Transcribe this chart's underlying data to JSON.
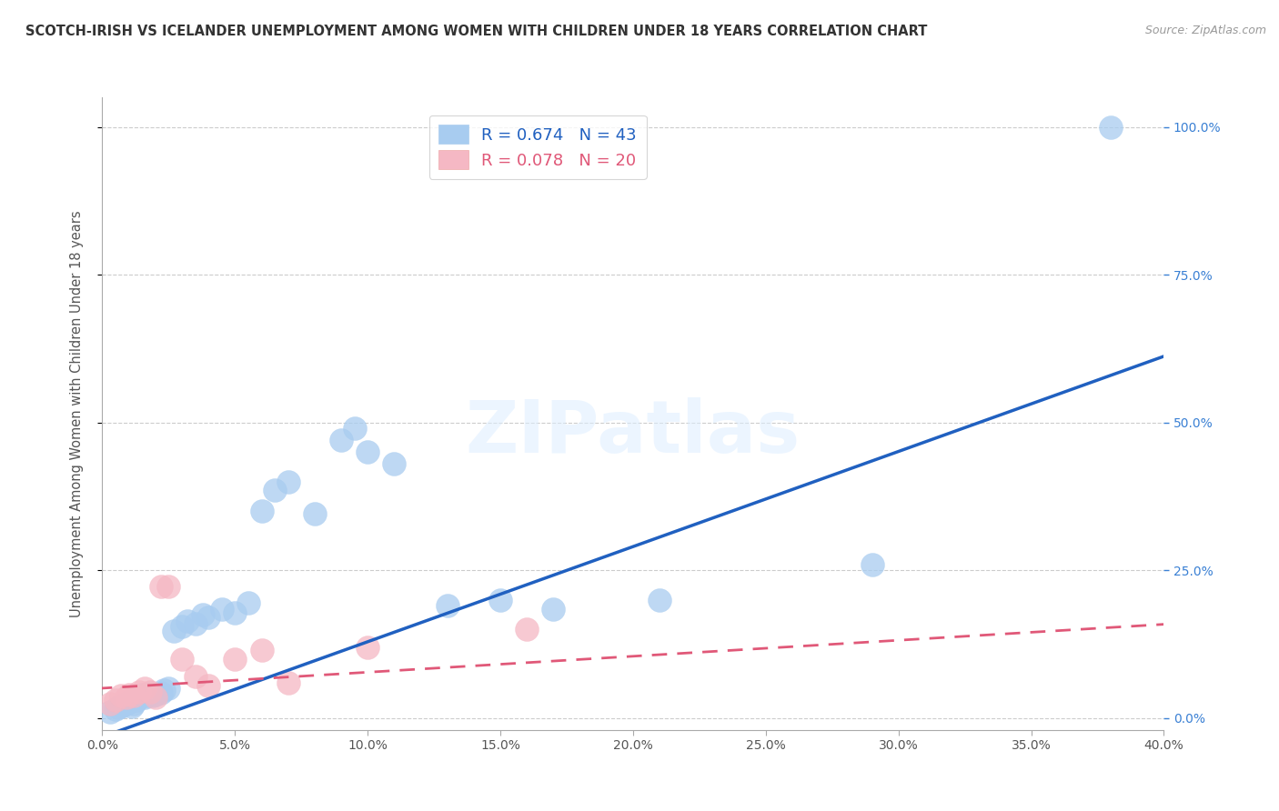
{
  "title": "SCOTCH-IRISH VS ICELANDER UNEMPLOYMENT AMONG WOMEN WITH CHILDREN UNDER 18 YEARS CORRELATION CHART",
  "source": "Source: ZipAtlas.com",
  "ylabel": "Unemployment Among Women with Children Under 18 years",
  "xlim": [
    0.0,
    0.4
  ],
  "ylim": [
    -0.02,
    1.05
  ],
  "scotch_irish_R": 0.674,
  "scotch_irish_N": 43,
  "icelander_R": 0.078,
  "icelander_N": 20,
  "scotch_irish_color": "#a8ccf0",
  "icelander_color": "#f5b8c4",
  "scotch_irish_line_color": "#2060c0",
  "icelander_line_color": "#e05878",
  "background_color": "#ffffff",
  "watermark": "ZIPatlas",
  "scotch_irish_x": [
    0.003,
    0.005,
    0.006,
    0.007,
    0.008,
    0.009,
    0.01,
    0.011,
    0.012,
    0.013,
    0.014,
    0.015,
    0.016,
    0.017,
    0.018,
    0.019,
    0.02,
    0.022,
    0.023,
    0.025,
    0.027,
    0.03,
    0.032,
    0.035,
    0.038,
    0.04,
    0.045,
    0.05,
    0.055,
    0.06,
    0.065,
    0.07,
    0.08,
    0.09,
    0.095,
    0.1,
    0.11,
    0.13,
    0.15,
    0.17,
    0.21,
    0.29,
    0.38
  ],
  "scotch_irish_y": [
    0.01,
    0.015,
    0.018,
    0.02,
    0.022,
    0.025,
    0.028,
    0.02,
    0.025,
    0.03,
    0.035,
    0.04,
    0.035,
    0.038,
    0.042,
    0.038,
    0.04,
    0.042,
    0.048,
    0.05,
    0.148,
    0.155,
    0.165,
    0.16,
    0.175,
    0.17,
    0.185,
    0.178,
    0.195,
    0.35,
    0.385,
    0.4,
    0.345,
    0.47,
    0.49,
    0.45,
    0.43,
    0.19,
    0.2,
    0.185,
    0.2,
    0.26,
    1.0
  ],
  "icelander_x": [
    0.003,
    0.005,
    0.007,
    0.009,
    0.01,
    0.012,
    0.014,
    0.016,
    0.018,
    0.02,
    0.022,
    0.025,
    0.03,
    0.035,
    0.04,
    0.05,
    0.06,
    0.07,
    0.1,
    0.16
  ],
  "icelander_y": [
    0.025,
    0.03,
    0.038,
    0.035,
    0.04,
    0.038,
    0.045,
    0.05,
    0.045,
    0.035,
    0.222,
    0.222,
    0.1,
    0.07,
    0.055,
    0.1,
    0.115,
    0.06,
    0.12,
    0.15
  ],
  "scotch_irish_line_x": [
    -0.002,
    0.405
  ],
  "scotch_irish_line_y": [
    -0.035,
    0.62
  ],
  "icelander_line_x": [
    -0.002,
    0.405
  ],
  "icelander_line_y": [
    0.05,
    0.16
  ]
}
